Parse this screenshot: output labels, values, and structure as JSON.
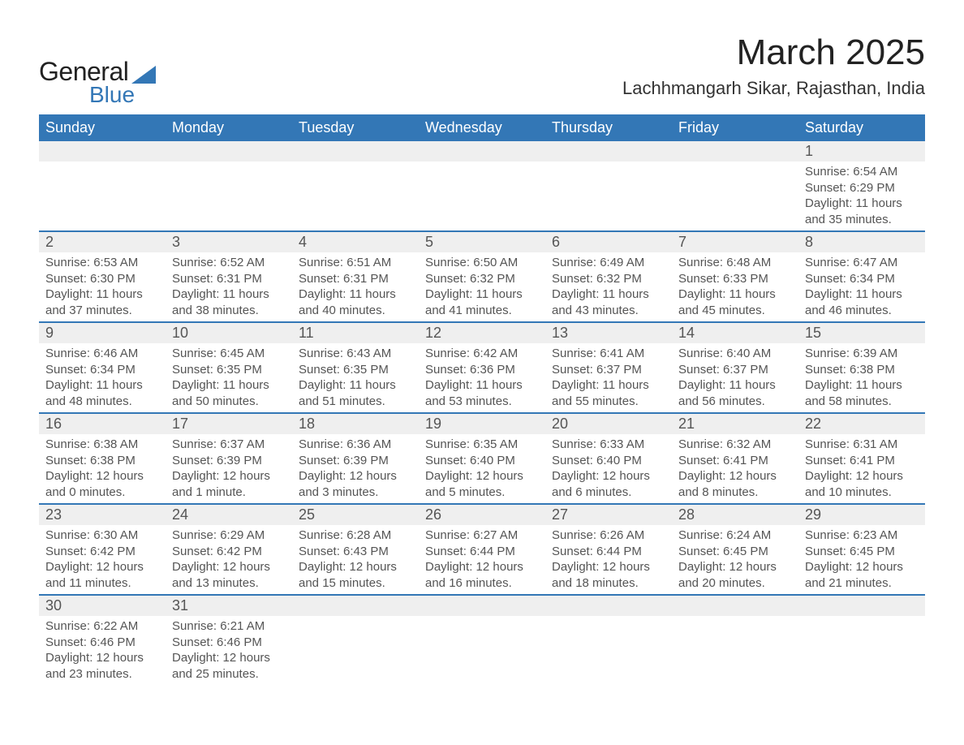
{
  "logo": {
    "text1": "General",
    "text2": "Blue",
    "text1_color": "#222222",
    "text2_color": "#3377b6",
    "triangle_color": "#3377b6"
  },
  "title": {
    "month": "March 2025",
    "location": "Lachhmangarh Sikar, Rajasthan, India",
    "month_fontsize": 44,
    "location_fontsize": 22
  },
  "colors": {
    "header_bg": "#3377b6",
    "header_text": "#ffffff",
    "daynum_bg": "#efefef",
    "row_border": "#3377b6",
    "body_text": "#555555",
    "page_bg": "#ffffff"
  },
  "fonts": {
    "family": "Arial",
    "header_size": 18,
    "daynum_size": 18,
    "detail_size": 15
  },
  "day_headers": [
    "Sunday",
    "Monday",
    "Tuesday",
    "Wednesday",
    "Thursday",
    "Friday",
    "Saturday"
  ],
  "weeks": [
    [
      {
        "num": "",
        "sunrise": "",
        "sunset": "",
        "daylight1": "",
        "daylight2": ""
      },
      {
        "num": "",
        "sunrise": "",
        "sunset": "",
        "daylight1": "",
        "daylight2": ""
      },
      {
        "num": "",
        "sunrise": "",
        "sunset": "",
        "daylight1": "",
        "daylight2": ""
      },
      {
        "num": "",
        "sunrise": "",
        "sunset": "",
        "daylight1": "",
        "daylight2": ""
      },
      {
        "num": "",
        "sunrise": "",
        "sunset": "",
        "daylight1": "",
        "daylight2": ""
      },
      {
        "num": "",
        "sunrise": "",
        "sunset": "",
        "daylight1": "",
        "daylight2": ""
      },
      {
        "num": "1",
        "sunrise": "Sunrise: 6:54 AM",
        "sunset": "Sunset: 6:29 PM",
        "daylight1": "Daylight: 11 hours",
        "daylight2": "and 35 minutes."
      }
    ],
    [
      {
        "num": "2",
        "sunrise": "Sunrise: 6:53 AM",
        "sunset": "Sunset: 6:30 PM",
        "daylight1": "Daylight: 11 hours",
        "daylight2": "and 37 minutes."
      },
      {
        "num": "3",
        "sunrise": "Sunrise: 6:52 AM",
        "sunset": "Sunset: 6:31 PM",
        "daylight1": "Daylight: 11 hours",
        "daylight2": "and 38 minutes."
      },
      {
        "num": "4",
        "sunrise": "Sunrise: 6:51 AM",
        "sunset": "Sunset: 6:31 PM",
        "daylight1": "Daylight: 11 hours",
        "daylight2": "and 40 minutes."
      },
      {
        "num": "5",
        "sunrise": "Sunrise: 6:50 AM",
        "sunset": "Sunset: 6:32 PM",
        "daylight1": "Daylight: 11 hours",
        "daylight2": "and 41 minutes."
      },
      {
        "num": "6",
        "sunrise": "Sunrise: 6:49 AM",
        "sunset": "Sunset: 6:32 PM",
        "daylight1": "Daylight: 11 hours",
        "daylight2": "and 43 minutes."
      },
      {
        "num": "7",
        "sunrise": "Sunrise: 6:48 AM",
        "sunset": "Sunset: 6:33 PM",
        "daylight1": "Daylight: 11 hours",
        "daylight2": "and 45 minutes."
      },
      {
        "num": "8",
        "sunrise": "Sunrise: 6:47 AM",
        "sunset": "Sunset: 6:34 PM",
        "daylight1": "Daylight: 11 hours",
        "daylight2": "and 46 minutes."
      }
    ],
    [
      {
        "num": "9",
        "sunrise": "Sunrise: 6:46 AM",
        "sunset": "Sunset: 6:34 PM",
        "daylight1": "Daylight: 11 hours",
        "daylight2": "and 48 minutes."
      },
      {
        "num": "10",
        "sunrise": "Sunrise: 6:45 AM",
        "sunset": "Sunset: 6:35 PM",
        "daylight1": "Daylight: 11 hours",
        "daylight2": "and 50 minutes."
      },
      {
        "num": "11",
        "sunrise": "Sunrise: 6:43 AM",
        "sunset": "Sunset: 6:35 PM",
        "daylight1": "Daylight: 11 hours",
        "daylight2": "and 51 minutes."
      },
      {
        "num": "12",
        "sunrise": "Sunrise: 6:42 AM",
        "sunset": "Sunset: 6:36 PM",
        "daylight1": "Daylight: 11 hours",
        "daylight2": "and 53 minutes."
      },
      {
        "num": "13",
        "sunrise": "Sunrise: 6:41 AM",
        "sunset": "Sunset: 6:37 PM",
        "daylight1": "Daylight: 11 hours",
        "daylight2": "and 55 minutes."
      },
      {
        "num": "14",
        "sunrise": "Sunrise: 6:40 AM",
        "sunset": "Sunset: 6:37 PM",
        "daylight1": "Daylight: 11 hours",
        "daylight2": "and 56 minutes."
      },
      {
        "num": "15",
        "sunrise": "Sunrise: 6:39 AM",
        "sunset": "Sunset: 6:38 PM",
        "daylight1": "Daylight: 11 hours",
        "daylight2": "and 58 minutes."
      }
    ],
    [
      {
        "num": "16",
        "sunrise": "Sunrise: 6:38 AM",
        "sunset": "Sunset: 6:38 PM",
        "daylight1": "Daylight: 12 hours",
        "daylight2": "and 0 minutes."
      },
      {
        "num": "17",
        "sunrise": "Sunrise: 6:37 AM",
        "sunset": "Sunset: 6:39 PM",
        "daylight1": "Daylight: 12 hours",
        "daylight2": "and 1 minute."
      },
      {
        "num": "18",
        "sunrise": "Sunrise: 6:36 AM",
        "sunset": "Sunset: 6:39 PM",
        "daylight1": "Daylight: 12 hours",
        "daylight2": "and 3 minutes."
      },
      {
        "num": "19",
        "sunrise": "Sunrise: 6:35 AM",
        "sunset": "Sunset: 6:40 PM",
        "daylight1": "Daylight: 12 hours",
        "daylight2": "and 5 minutes."
      },
      {
        "num": "20",
        "sunrise": "Sunrise: 6:33 AM",
        "sunset": "Sunset: 6:40 PM",
        "daylight1": "Daylight: 12 hours",
        "daylight2": "and 6 minutes."
      },
      {
        "num": "21",
        "sunrise": "Sunrise: 6:32 AM",
        "sunset": "Sunset: 6:41 PM",
        "daylight1": "Daylight: 12 hours",
        "daylight2": "and 8 minutes."
      },
      {
        "num": "22",
        "sunrise": "Sunrise: 6:31 AM",
        "sunset": "Sunset: 6:41 PM",
        "daylight1": "Daylight: 12 hours",
        "daylight2": "and 10 minutes."
      }
    ],
    [
      {
        "num": "23",
        "sunrise": "Sunrise: 6:30 AM",
        "sunset": "Sunset: 6:42 PM",
        "daylight1": "Daylight: 12 hours",
        "daylight2": "and 11 minutes."
      },
      {
        "num": "24",
        "sunrise": "Sunrise: 6:29 AM",
        "sunset": "Sunset: 6:42 PM",
        "daylight1": "Daylight: 12 hours",
        "daylight2": "and 13 minutes."
      },
      {
        "num": "25",
        "sunrise": "Sunrise: 6:28 AM",
        "sunset": "Sunset: 6:43 PM",
        "daylight1": "Daylight: 12 hours",
        "daylight2": "and 15 minutes."
      },
      {
        "num": "26",
        "sunrise": "Sunrise: 6:27 AM",
        "sunset": "Sunset: 6:44 PM",
        "daylight1": "Daylight: 12 hours",
        "daylight2": "and 16 minutes."
      },
      {
        "num": "27",
        "sunrise": "Sunrise: 6:26 AM",
        "sunset": "Sunset: 6:44 PM",
        "daylight1": "Daylight: 12 hours",
        "daylight2": "and 18 minutes."
      },
      {
        "num": "28",
        "sunrise": "Sunrise: 6:24 AM",
        "sunset": "Sunset: 6:45 PM",
        "daylight1": "Daylight: 12 hours",
        "daylight2": "and 20 minutes."
      },
      {
        "num": "29",
        "sunrise": "Sunrise: 6:23 AM",
        "sunset": "Sunset: 6:45 PM",
        "daylight1": "Daylight: 12 hours",
        "daylight2": "and 21 minutes."
      }
    ],
    [
      {
        "num": "30",
        "sunrise": "Sunrise: 6:22 AM",
        "sunset": "Sunset: 6:46 PM",
        "daylight1": "Daylight: 12 hours",
        "daylight2": "and 23 minutes."
      },
      {
        "num": "31",
        "sunrise": "Sunrise: 6:21 AM",
        "sunset": "Sunset: 6:46 PM",
        "daylight1": "Daylight: 12 hours",
        "daylight2": "and 25 minutes."
      },
      {
        "num": "",
        "sunrise": "",
        "sunset": "",
        "daylight1": "",
        "daylight2": ""
      },
      {
        "num": "",
        "sunrise": "",
        "sunset": "",
        "daylight1": "",
        "daylight2": ""
      },
      {
        "num": "",
        "sunrise": "",
        "sunset": "",
        "daylight1": "",
        "daylight2": ""
      },
      {
        "num": "",
        "sunrise": "",
        "sunset": "",
        "daylight1": "",
        "daylight2": ""
      },
      {
        "num": "",
        "sunrise": "",
        "sunset": "",
        "daylight1": "",
        "daylight2": ""
      }
    ]
  ]
}
